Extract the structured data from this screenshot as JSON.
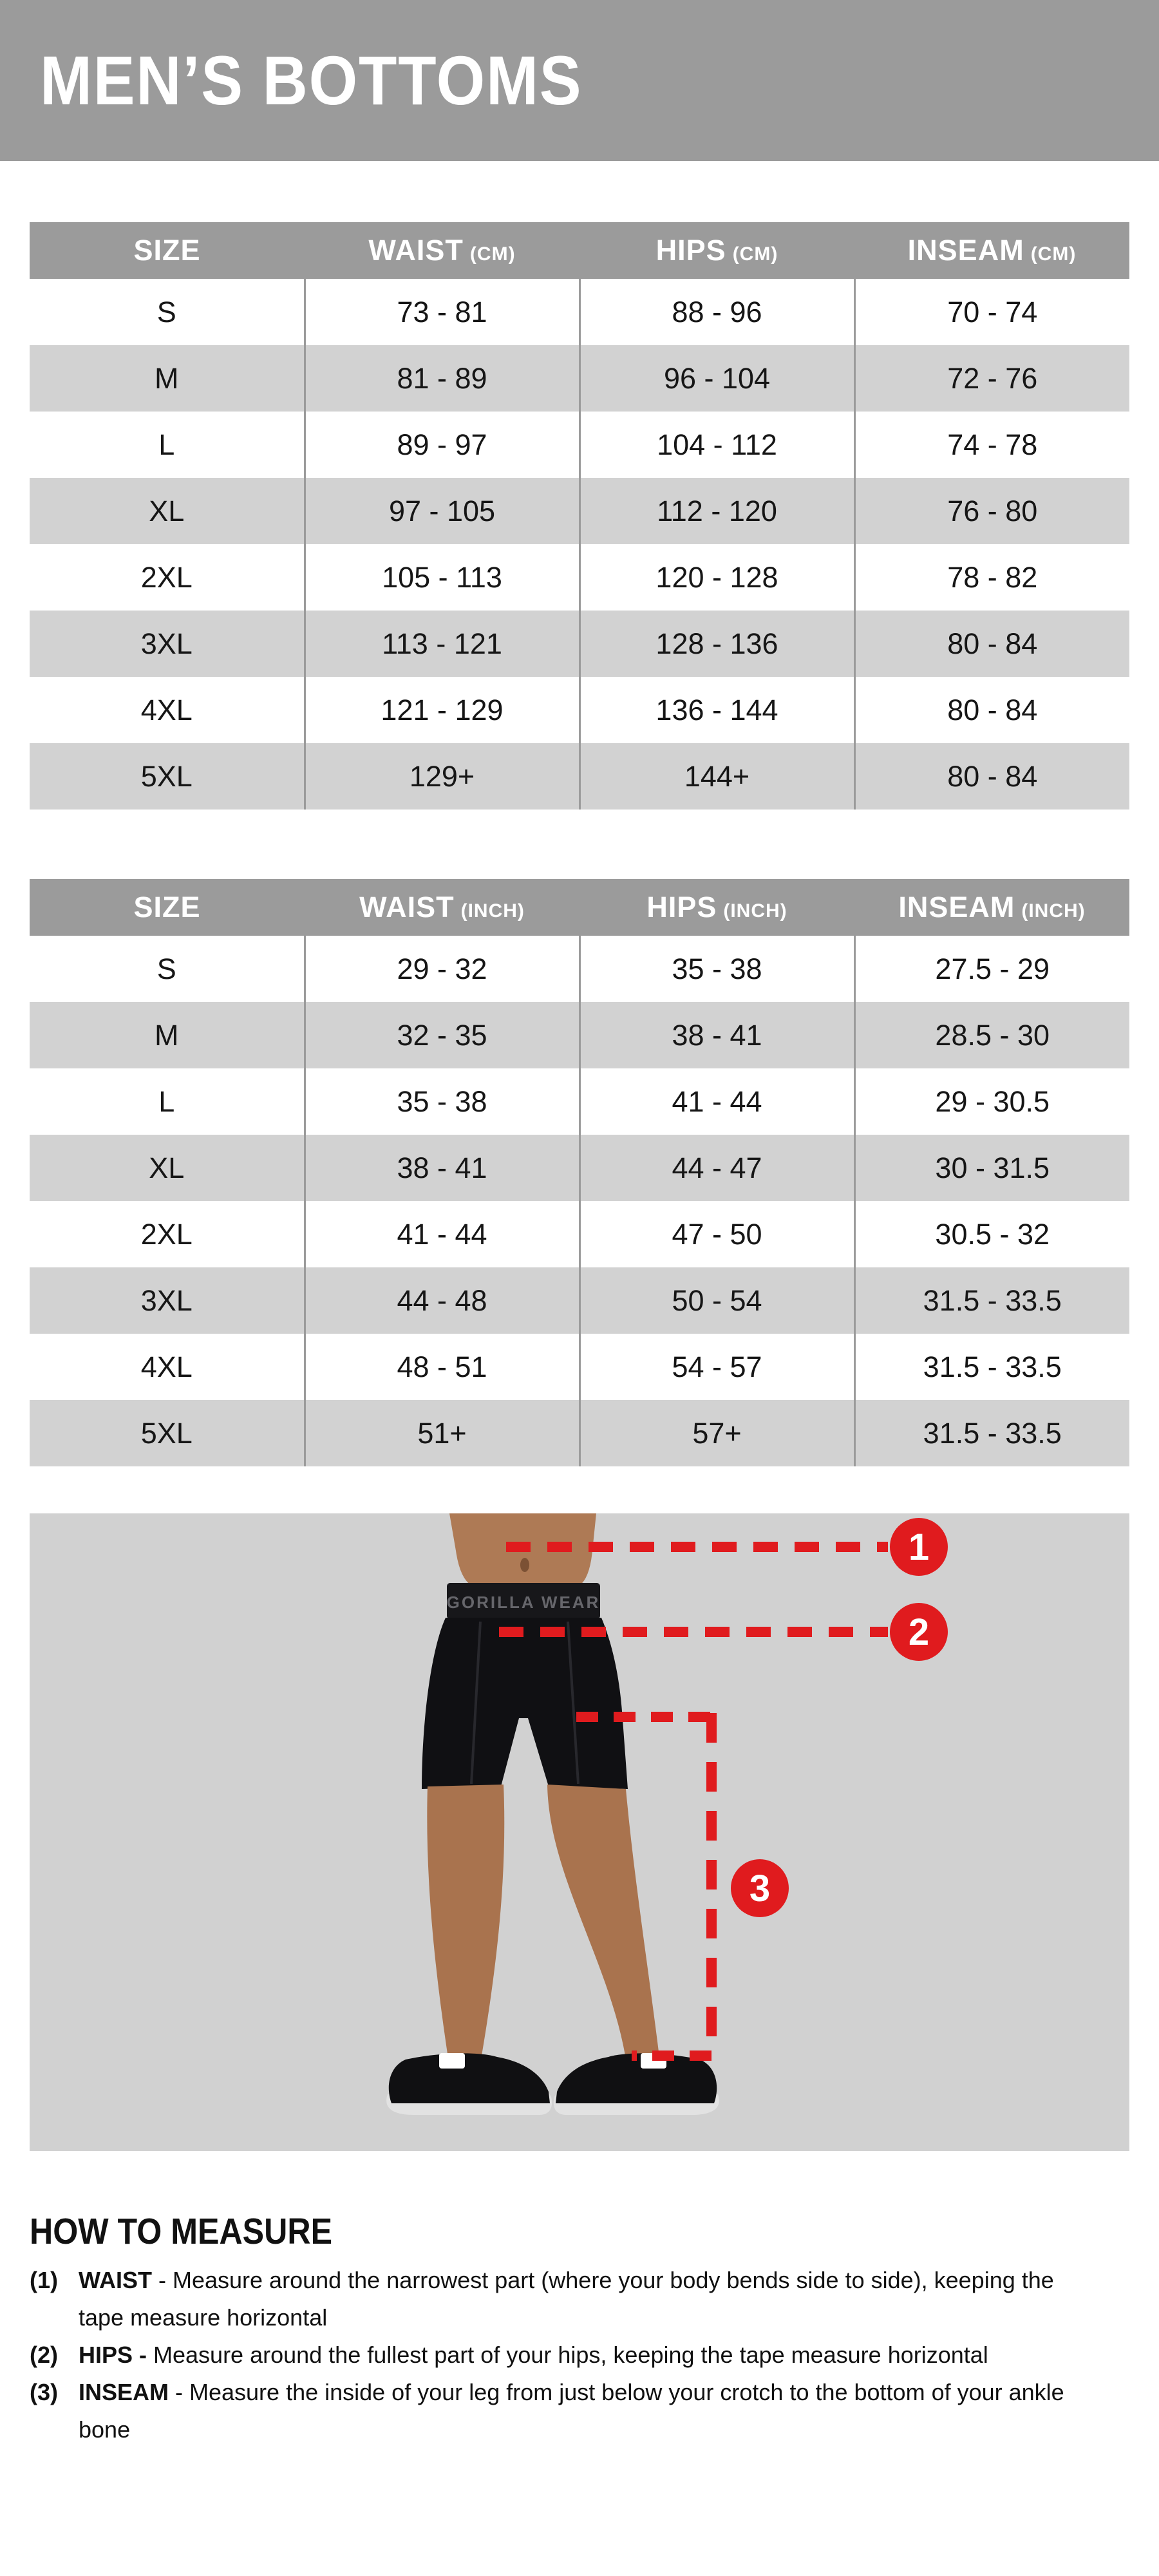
{
  "page": {
    "title": "MEN’S BOTTOMS"
  },
  "colors": {
    "accent_red": "#e01b1e",
    "header_gray": "#9b9b9b",
    "row_alt_gray": "#d2d2d2",
    "figure_bg": "#d1d1d1",
    "shorts_black": "#101013",
    "skin_tone": "#ae7a55",
    "text_black": "#161616"
  },
  "tables": [
    {
      "name": "sizes-cm",
      "columns": [
        {
          "label": "SIZE",
          "unit": ""
        },
        {
          "label": "WAIST",
          "unit": "(CM)"
        },
        {
          "label": "HIPS",
          "unit": "(CM)"
        },
        {
          "label": "INSEAM",
          "unit": "(CM)"
        }
      ],
      "rows": [
        [
          "S",
          "73 - 81",
          "88 - 96",
          "70 - 74"
        ],
        [
          "M",
          "81 - 89",
          "96 - 104",
          "72 - 76"
        ],
        [
          "L",
          "89 - 97",
          "104 - 112",
          "74 - 78"
        ],
        [
          "XL",
          "97 - 105",
          "112 - 120",
          "76 - 80"
        ],
        [
          "2XL",
          "105 - 113",
          "120 - 128",
          "78 - 82"
        ],
        [
          "3XL",
          "113 - 121",
          "128 - 136",
          "80 - 84"
        ],
        [
          "4XL",
          "121 - 129",
          "136 - 144",
          "80 - 84"
        ],
        [
          "5XL",
          "129+",
          "144+",
          "80 - 84"
        ]
      ]
    },
    {
      "name": "sizes-inch",
      "columns": [
        {
          "label": "SIZE",
          "unit": ""
        },
        {
          "label": "WAIST",
          "unit": "(INCH)"
        },
        {
          "label": "HIPS",
          "unit": "(INCH)"
        },
        {
          "label": "INSEAM",
          "unit": "(INCH)"
        }
      ],
      "rows": [
        [
          "S",
          "29 - 32",
          "35 - 38",
          "27.5 - 29"
        ],
        [
          "M",
          "32 - 35",
          "38 - 41",
          "28.5 - 30"
        ],
        [
          "L",
          "35 - 38",
          "41 - 44",
          "29 - 30.5"
        ],
        [
          "XL",
          "38 - 41",
          "44 - 47",
          "30 - 31.5"
        ],
        [
          "2XL",
          "41 - 44",
          "47 - 50",
          "30.5 - 32"
        ],
        [
          "3XL",
          "44 - 48",
          "50 - 54",
          "31.5 - 33.5"
        ],
        [
          "4XL",
          "48 - 51",
          "54 - 57",
          "31.5 - 33.5"
        ],
        [
          "5XL",
          "51+",
          "57+",
          "31.5 - 33.5"
        ]
      ]
    }
  ],
  "figure": {
    "brand": "GORILLA WEAR",
    "markers": [
      "1",
      "2",
      "3"
    ]
  },
  "how_to_measure": {
    "heading": "HOW TO MEASURE",
    "items": [
      {
        "num": "(1)",
        "term": "WAIST",
        "text": " - Measure around the narrowest part (where your body bends side to side), keeping the tape measure horizontal"
      },
      {
        "num": "(2)",
        "term": "HIPS -",
        "text": " Measure around the fullest part of your hips, keeping the tape measure horizontal"
      },
      {
        "num": "(3)",
        "term": "INSEAM",
        "text": " - Measure the inside of your leg from just below your crotch to the bottom of your ankle bone"
      }
    ]
  }
}
